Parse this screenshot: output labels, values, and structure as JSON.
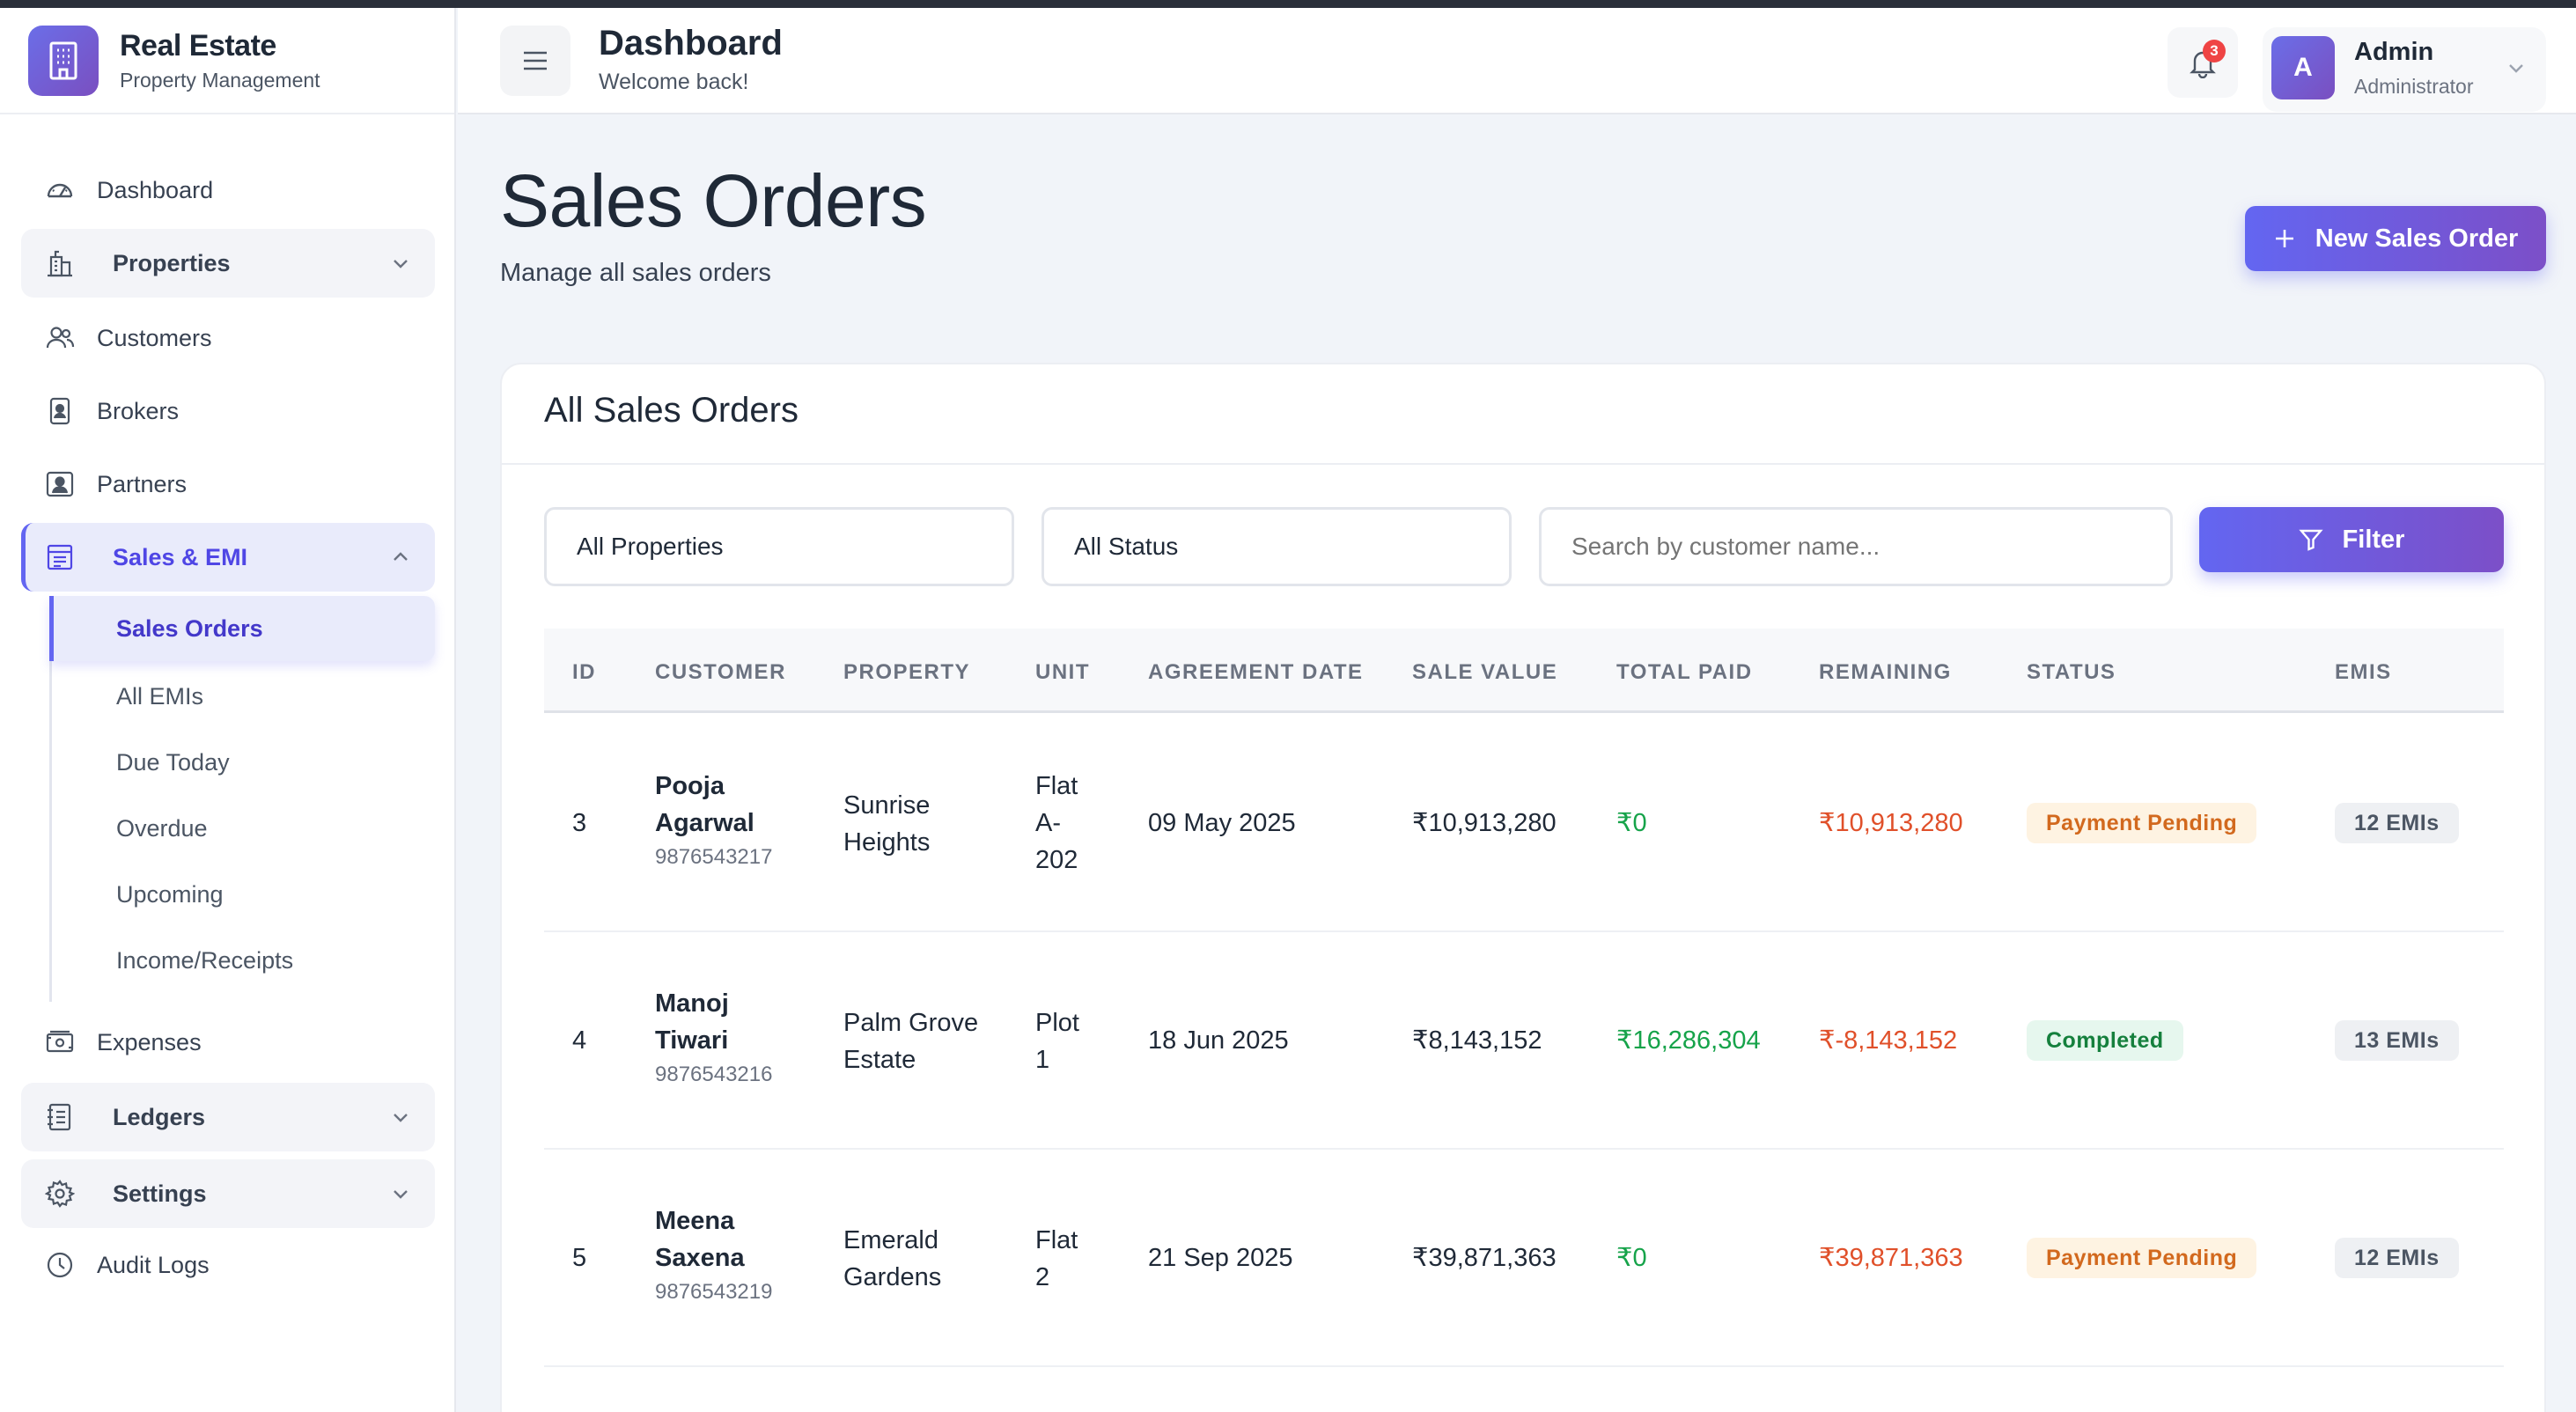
{
  "brand": {
    "title": "Real Estate",
    "subtitle": "Property Management"
  },
  "sidebar": {
    "items": [
      {
        "label": "Dashboard",
        "icon": "speedometer-icon"
      },
      {
        "label": "Properties",
        "icon": "building-icon",
        "expandable": true
      },
      {
        "label": "Customers",
        "icon": "users-icon"
      },
      {
        "label": "Brokers",
        "icon": "id-badge-icon"
      },
      {
        "label": "Partners",
        "icon": "contact-card-icon"
      },
      {
        "label": "Sales & EMI",
        "icon": "receipt-icon",
        "expandable": true,
        "expanded": true
      },
      {
        "label": "Expenses",
        "icon": "cash-icon"
      },
      {
        "label": "Ledgers",
        "icon": "ledger-icon",
        "expandable": true
      },
      {
        "label": "Settings",
        "icon": "gear-icon",
        "expandable": true
      },
      {
        "label": "Audit Logs",
        "icon": "clock-icon"
      }
    ],
    "sales_submenu": [
      "Sales Orders",
      "All EMIs",
      "Due Today",
      "Overdue",
      "Upcoming",
      "Income/Receipts"
    ]
  },
  "header": {
    "title": "Dashboard",
    "subtitle": "Welcome back!",
    "notification_count": "3",
    "user": {
      "initial": "A",
      "name": "Admin",
      "role": "Administrator"
    }
  },
  "page": {
    "title": "Sales Orders",
    "subtitle": "Manage all sales orders",
    "new_button": "New Sales Order"
  },
  "card": {
    "title": "All Sales Orders",
    "filters": {
      "property_select": "All Properties",
      "status_select": "All Status",
      "search_placeholder": "Search by customer name...",
      "filter_button": "Filter"
    },
    "columns": [
      "ID",
      "CUSTOMER",
      "PROPERTY",
      "UNIT",
      "AGREEMENT DATE",
      "SALE VALUE",
      "TOTAL PAID",
      "REMAINING",
      "STATUS",
      "EMIS"
    ],
    "rows": [
      {
        "id": "3",
        "first": "Pooja",
        "last": "Agarwal",
        "phone": "9876543217",
        "prop1": "Sunrise",
        "prop2": "Heights",
        "unit1": "Flat",
        "unit2": "A-",
        "unit3": "202",
        "date": "09 May 2025",
        "sale": "₹10,913,280",
        "paid": "₹0",
        "remaining": "₹10,913,280",
        "status": "Payment Pending",
        "emis": "12 EMIs"
      },
      {
        "id": "4",
        "first": "Manoj",
        "last": "Tiwari",
        "phone": "9876543216",
        "prop1": "Palm Grove",
        "prop2": "Estate",
        "unit1": "Plot",
        "unit2": "1",
        "unit3": "",
        "date": "18 Jun 2025",
        "sale": "₹8,143,152",
        "paid": "₹16,286,304",
        "remaining": "₹-8,143,152",
        "status": "Completed",
        "emis": "13 EMIs"
      },
      {
        "id": "5",
        "first": "Meena",
        "last": "Saxena",
        "phone": "9876543219",
        "prop1": "Emerald",
        "prop2": "Gardens",
        "unit1": "Flat",
        "unit2": "2",
        "unit3": "",
        "date": "21 Sep 2025",
        "sale": "₹39,871,363",
        "paid": "₹0",
        "remaining": "₹39,871,363",
        "status": "Payment Pending",
        "emis": "12 EMIs"
      }
    ]
  }
}
